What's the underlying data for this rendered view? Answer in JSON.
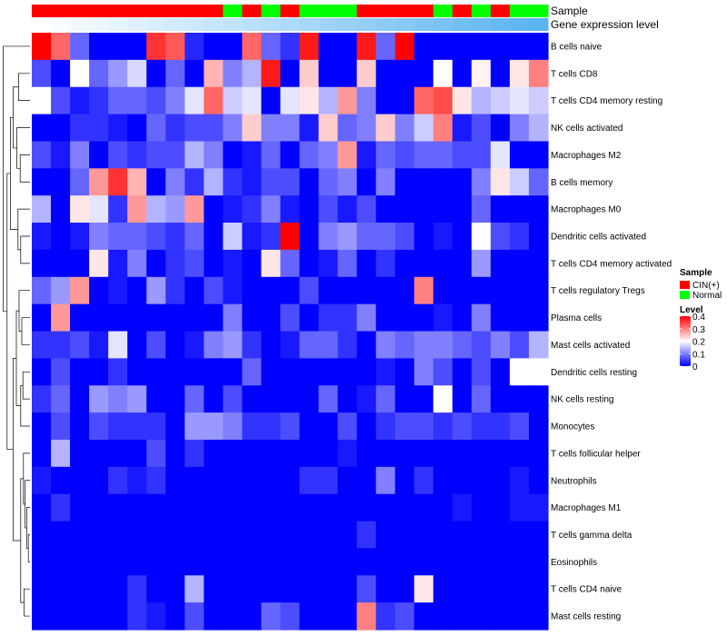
{
  "chart_data": {
    "type": "heatmap",
    "title": "",
    "annotation_titles": [
      "Sample",
      "Gene expression level"
    ],
    "sample_annotation": [
      "CIN(+)",
      "CIN(+)",
      "CIN(+)",
      "CIN(+)",
      "CIN(+)",
      "CIN(+)",
      "CIN(+)",
      "CIN(+)",
      "CIN(+)",
      "CIN(+)",
      "Normal",
      "CIN(+)",
      "Normal",
      "CIN(+)",
      "Normal",
      "Normal",
      "Normal",
      "CIN(+)",
      "CIN(+)",
      "CIN(+)",
      "CIN(+)",
      "Normal",
      "CIN(+)",
      "Normal",
      "CIN(+)",
      "Normal",
      "Normal"
    ],
    "gene_expression_level": [
      0.0,
      0.04,
      0.08,
      0.12,
      0.15,
      0.19,
      0.23,
      0.27,
      0.31,
      0.35,
      0.38,
      0.42,
      0.46,
      0.5,
      0.54,
      0.58,
      0.62,
      0.65,
      0.69,
      0.73,
      0.77,
      0.81,
      0.85,
      0.88,
      0.92,
      0.96,
      1.0
    ],
    "rows": [
      "B cells naive",
      "T cells CD8",
      "T cells CD4 memory resting",
      "NK cells activated",
      "Macrophages M2",
      "B cells memory",
      "Macrophages M0",
      "Dendritic cells activated",
      "T cells CD4 memory activated",
      "T cells regulatory  Tregs",
      "Plasma cells",
      "Mast cells activated",
      "Dendritic cells resting",
      "NK cells resting",
      "Monocytes",
      "T cells follicular helper",
      "Neutrophils",
      "Macrophages M1",
      "T cells gamma delta",
      "Eosinophils",
      "T cells CD4 naive",
      "Mast cells resting"
    ],
    "values": [
      [
        0.4,
        0.32,
        0.08,
        0.0,
        0.0,
        0.0,
        0.36,
        0.33,
        0.03,
        0.0,
        0.0,
        0.32,
        0.08,
        0.04,
        0.38,
        0.0,
        0.0,
        0.38,
        0.08,
        0.4,
        0.0,
        0.0,
        0.0,
        0.0,
        0.0,
        0.0,
        0.0
      ],
      [
        0.06,
        0.0,
        0.2,
        0.08,
        0.12,
        0.17,
        0.0,
        0.08,
        0.0,
        0.26,
        0.1,
        0.14,
        0.38,
        0.0,
        0.24,
        0.0,
        0.0,
        0.24,
        0.0,
        0.0,
        0.0,
        0.2,
        0.0,
        0.21,
        0.0,
        0.22,
        0.3
      ],
      [
        0.2,
        0.06,
        0.02,
        0.04,
        0.08,
        0.08,
        0.06,
        0.1,
        0.18,
        0.32,
        0.16,
        0.18,
        0.0,
        0.18,
        0.22,
        0.14,
        0.28,
        0.1,
        0.0,
        0.0,
        0.32,
        0.34,
        0.22,
        0.14,
        0.16,
        0.18,
        0.16
      ],
      [
        0.0,
        0.0,
        0.04,
        0.04,
        0.02,
        0.0,
        0.08,
        0.04,
        0.06,
        0.06,
        0.1,
        0.24,
        0.1,
        0.1,
        0.02,
        0.24,
        0.08,
        0.1,
        0.24,
        0.1,
        0.16,
        0.3,
        0.02,
        0.06,
        0.0,
        0.1,
        0.14
      ],
      [
        0.06,
        0.02,
        0.1,
        0.0,
        0.06,
        0.04,
        0.06,
        0.06,
        0.14,
        0.1,
        0.0,
        0.02,
        0.08,
        0.0,
        0.08,
        0.1,
        0.28,
        0.02,
        0.08,
        0.06,
        0.08,
        0.08,
        0.06,
        0.06,
        0.18,
        0.0,
        0.0
      ],
      [
        0.0,
        0.0,
        0.08,
        0.28,
        0.36,
        0.26,
        0.0,
        0.1,
        0.04,
        0.14,
        0.04,
        0.02,
        0.06,
        0.06,
        0.0,
        0.08,
        0.1,
        0.0,
        0.1,
        0.0,
        0.0,
        0.0,
        0.0,
        0.1,
        0.22,
        0.16,
        0.08
      ],
      [
        0.14,
        0.0,
        0.22,
        0.18,
        0.04,
        0.28,
        0.14,
        0.12,
        0.28,
        0.0,
        0.02,
        0.04,
        0.1,
        0.02,
        0.0,
        0.06,
        0.02,
        0.06,
        0.0,
        0.0,
        0.0,
        0.0,
        0.0,
        0.08,
        0.0,
        0.0,
        0.0
      ],
      [
        0.02,
        0.0,
        0.02,
        0.1,
        0.08,
        0.08,
        0.06,
        0.04,
        0.08,
        0.0,
        0.16,
        0.02,
        0.04,
        0.4,
        0.0,
        0.1,
        0.12,
        0.08,
        0.08,
        0.06,
        0.0,
        0.02,
        0.0,
        0.2,
        0.06,
        0.04,
        0.0
      ],
      [
        0.0,
        0.0,
        0.0,
        0.22,
        0.02,
        0.1,
        0.0,
        0.04,
        0.06,
        0.0,
        0.02,
        0.0,
        0.22,
        0.08,
        0.0,
        0.02,
        0.08,
        0.0,
        0.04,
        0.0,
        0.0,
        0.0,
        0.0,
        0.12,
        0.0,
        0.0,
        0.0
      ],
      [
        0.08,
        0.12,
        0.28,
        0.0,
        0.02,
        0.0,
        0.12,
        0.04,
        0.0,
        0.06,
        0.02,
        0.0,
        0.0,
        0.0,
        0.06,
        0.0,
        0.0,
        0.0,
        0.0,
        0.0,
        0.3,
        0.0,
        0.0,
        0.0,
        0.0,
        0.0,
        0.0
      ],
      [
        0.0,
        0.28,
        0.0,
        0.0,
        0.0,
        0.0,
        0.0,
        0.0,
        0.0,
        0.0,
        0.1,
        0.0,
        0.0,
        0.06,
        0.0,
        0.04,
        0.04,
        0.1,
        0.0,
        0.0,
        0.0,
        0.02,
        0.0,
        0.1,
        0.0,
        0.0,
        0.0
      ],
      [
        0.04,
        0.04,
        0.06,
        0.02,
        0.18,
        0.0,
        0.06,
        0.0,
        0.02,
        0.1,
        0.12,
        0.04,
        0.0,
        0.02,
        0.08,
        0.08,
        0.04,
        0.0,
        0.1,
        0.08,
        0.1,
        0.1,
        0.08,
        0.06,
        0.1,
        0.06,
        0.14
      ],
      [
        0.0,
        0.06,
        0.0,
        0.0,
        0.04,
        0.0,
        0.0,
        0.0,
        0.0,
        0.0,
        0.0,
        0.08,
        0.0,
        0.0,
        0.0,
        0.0,
        0.0,
        0.0,
        0.02,
        0.0,
        0.1,
        0.06,
        0.0,
        0.06,
        0.0,
        0.2,
        0.2
      ],
      [
        0.04,
        0.08,
        0.0,
        0.12,
        0.1,
        0.12,
        0.0,
        0.0,
        0.08,
        0.0,
        0.06,
        0.0,
        0.0,
        0.0,
        0.0,
        0.08,
        0.0,
        0.02,
        0.08,
        0.0,
        0.0,
        0.2,
        0.0,
        0.08,
        0.0,
        0.0,
        0.0
      ],
      [
        0.0,
        0.06,
        0.0,
        0.06,
        0.04,
        0.04,
        0.04,
        0.0,
        0.12,
        0.12,
        0.1,
        0.04,
        0.04,
        0.06,
        0.0,
        0.0,
        0.06,
        0.0,
        0.04,
        0.06,
        0.06,
        0.04,
        0.06,
        0.04,
        0.04,
        0.06,
        0.0
      ],
      [
        0.0,
        0.14,
        0.0,
        0.0,
        0.0,
        0.0,
        0.06,
        0.0,
        0.04,
        0.0,
        0.0,
        0.0,
        0.0,
        0.0,
        0.0,
        0.0,
        0.02,
        0.0,
        0.0,
        0.0,
        0.0,
        0.0,
        0.0,
        0.0,
        0.0,
        0.0,
        0.0
      ],
      [
        0.02,
        0.0,
        0.0,
        0.0,
        0.04,
        0.02,
        0.04,
        0.0,
        0.0,
        0.0,
        0.0,
        0.0,
        0.0,
        0.0,
        0.04,
        0.04,
        0.0,
        0.0,
        0.1,
        0.0,
        0.04,
        0.0,
        0.0,
        0.0,
        0.0,
        0.02,
        0.0
      ],
      [
        0.0,
        0.04,
        0.0,
        0.0,
        0.0,
        0.0,
        0.0,
        0.0,
        0.0,
        0.0,
        0.0,
        0.0,
        0.0,
        0.0,
        0.0,
        0.0,
        0.0,
        0.0,
        0.0,
        0.0,
        0.0,
        0.0,
        0.02,
        0.0,
        0.0,
        0.02,
        0.02
      ],
      [
        0.0,
        0.0,
        0.0,
        0.0,
        0.0,
        0.0,
        0.0,
        0.0,
        0.0,
        0.0,
        0.0,
        0.0,
        0.0,
        0.0,
        0.0,
        0.0,
        0.0,
        0.04,
        0.0,
        0.0,
        0.0,
        0.0,
        0.0,
        0.0,
        0.0,
        0.0,
        0.0
      ],
      [
        0.0,
        0.0,
        0.0,
        0.0,
        0.0,
        0.0,
        0.0,
        0.0,
        0.0,
        0.0,
        0.0,
        0.0,
        0.0,
        0.0,
        0.0,
        0.0,
        0.0,
        0.0,
        0.0,
        0.0,
        0.0,
        0.0,
        0.0,
        0.0,
        0.0,
        0.0,
        0.0
      ],
      [
        0.0,
        0.0,
        0.0,
        0.0,
        0.0,
        0.04,
        0.0,
        0.0,
        0.14,
        0.0,
        0.0,
        0.0,
        0.0,
        0.0,
        0.0,
        0.0,
        0.0,
        0.06,
        0.0,
        0.0,
        0.22,
        0.0,
        0.0,
        0.0,
        0.0,
        0.0,
        0.0
      ],
      [
        0.0,
        0.0,
        0.0,
        0.0,
        0.0,
        0.04,
        0.02,
        0.0,
        0.06,
        0.0,
        0.0,
        0.0,
        0.08,
        0.06,
        0.0,
        0.0,
        0.0,
        0.3,
        0.04,
        0.06,
        0.0,
        0.0,
        0.0,
        0.0,
        0.0,
        0.0,
        0.0
      ]
    ],
    "color_scale": {
      "min": 0,
      "mid": 0.2,
      "max": 0.4,
      "low": "#0000ff",
      "mid_color": "#ffffff",
      "high": "#ff0000"
    },
    "legend": {
      "sample_title": "Sample",
      "sample_levels": [
        {
          "label": "CIN(+)",
          "color": "#ff0000"
        },
        {
          "label": "Normal",
          "color": "#00ff00"
        }
      ],
      "level_title": "Level",
      "level_ticks": [
        "0.4",
        "0.3",
        "0.2",
        "0.1",
        "0"
      ],
      "level_tick_values": [
        0.4,
        0.3,
        0.2,
        0.1,
        0
      ],
      "placement": "right"
    },
    "expression_colors": {
      "low": "#ffffff",
      "high": "#5ab4f0"
    },
    "dendrogram_side": "left"
  }
}
